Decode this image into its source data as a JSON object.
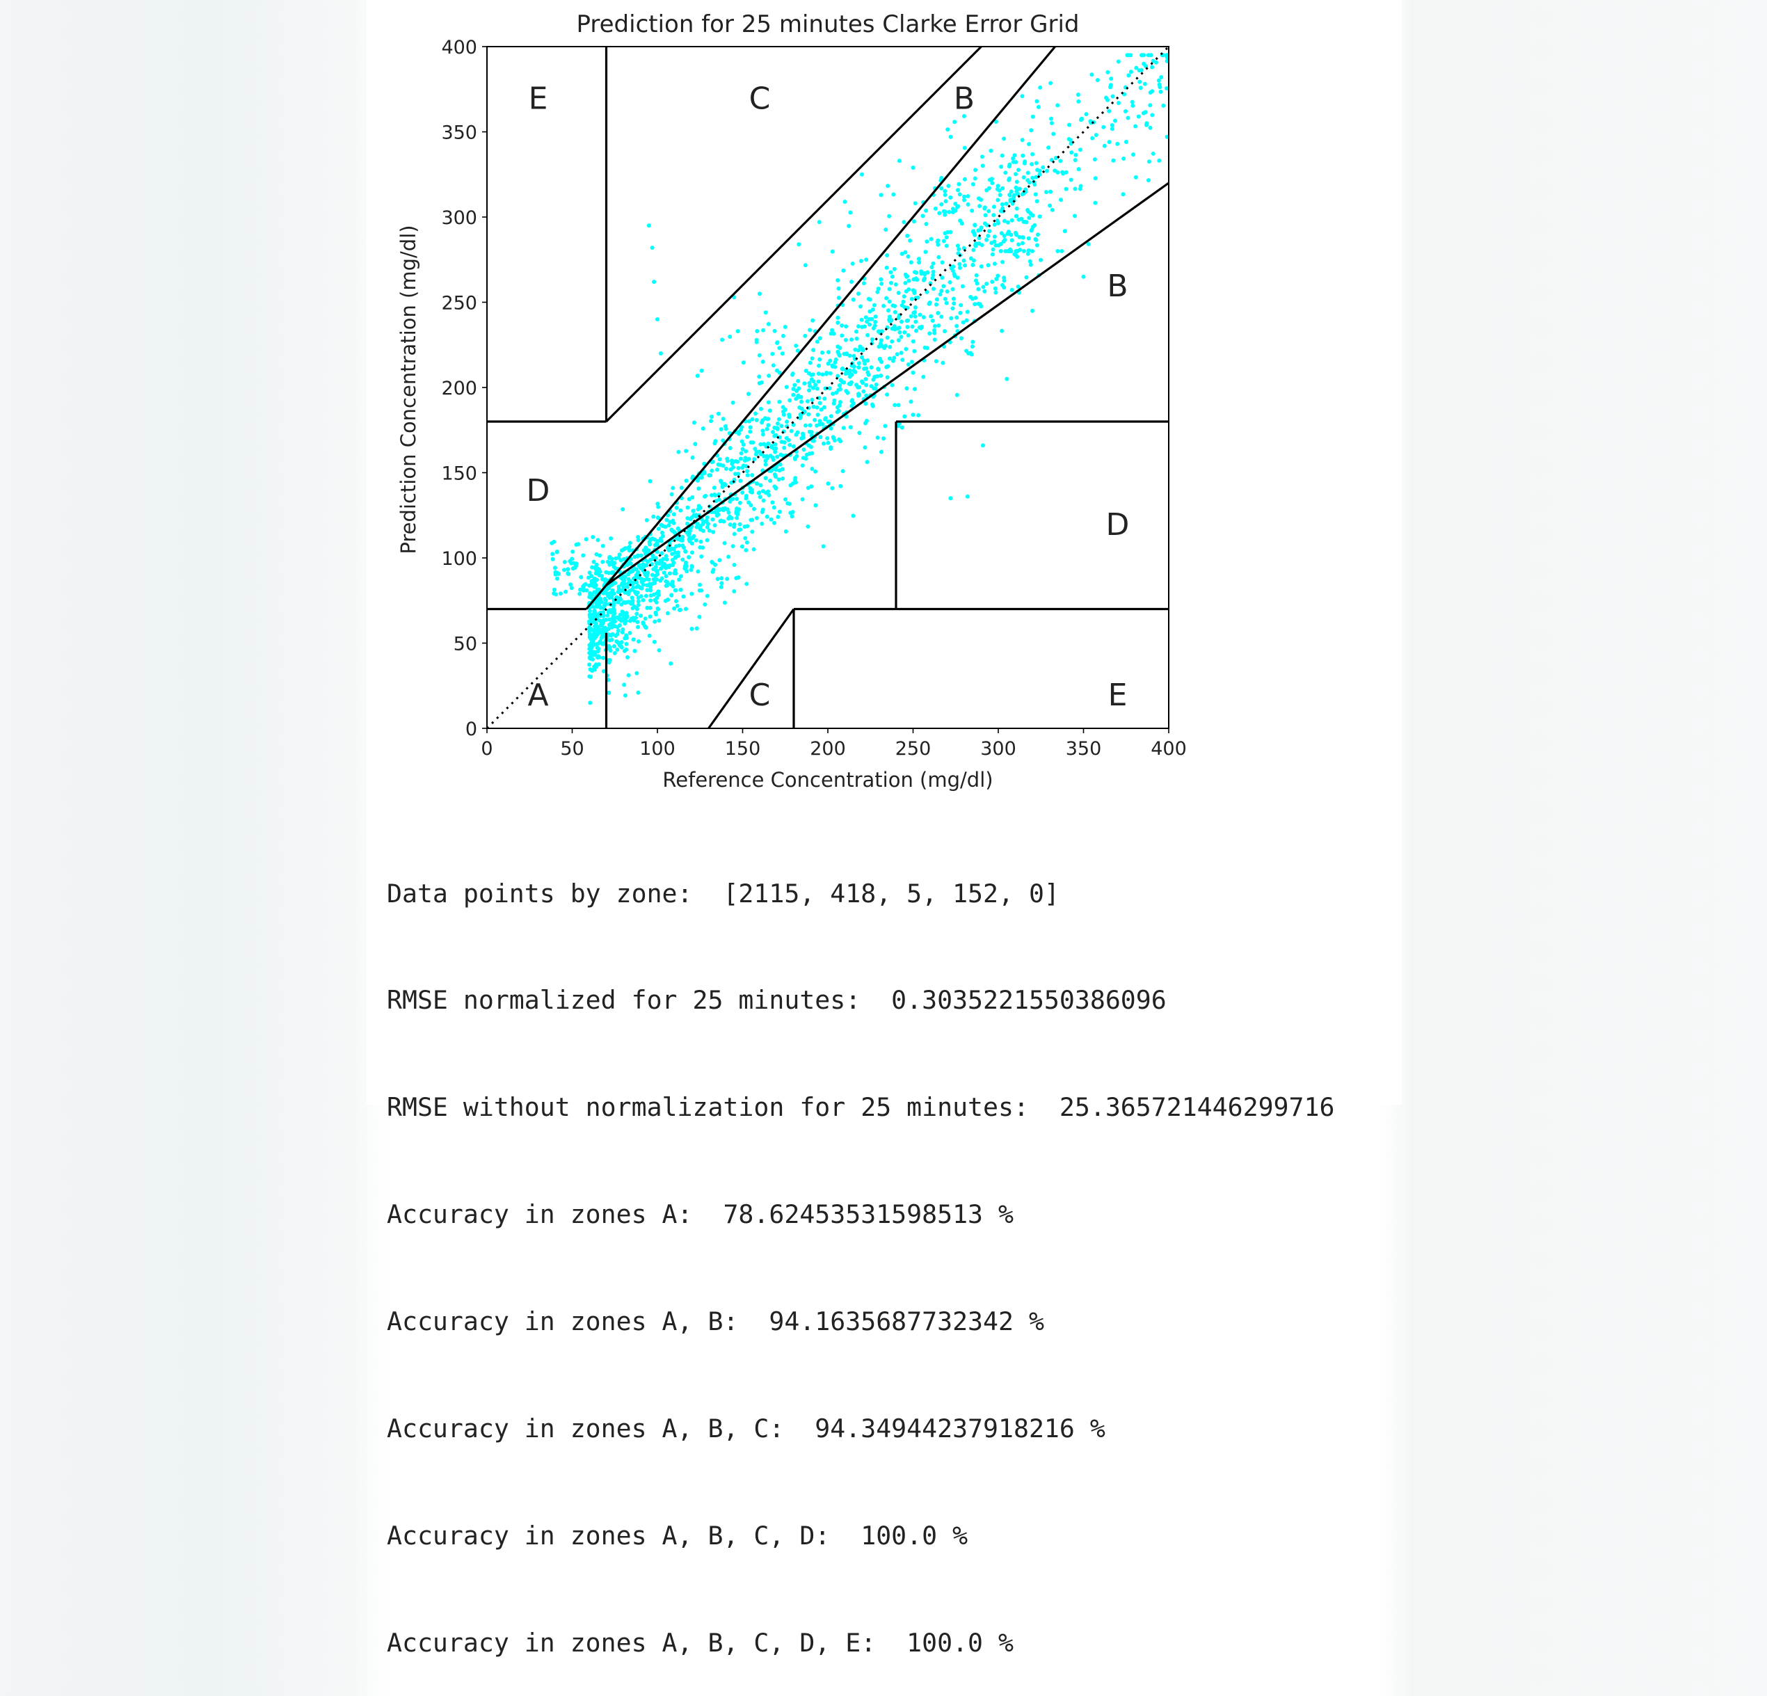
{
  "chart_data": {
    "type": "scatter",
    "title": "Prediction for 25 minutes Clarke Error Grid",
    "xlabel": "Reference Concentration (mg/dl)",
    "ylabel": "Prediction Concentration (mg/dl)",
    "xlim": [
      0,
      400
    ],
    "ylim": [
      0,
      400
    ],
    "xticks": [
      0,
      50,
      100,
      150,
      200,
      250,
      300,
      350,
      400
    ],
    "yticks": [
      0,
      50,
      100,
      150,
      200,
      250,
      300,
      350,
      400
    ],
    "point_color": "#00ffff",
    "zone_lines": [
      [
        [
          0,
          70
        ],
        [
          58.33,
          70
        ]
      ],
      [
        [
          70,
          84
        ],
        [
          400,
          320
        ]
      ],
      [
        [
          70,
          180
        ],
        [
          290,
          400
        ]
      ],
      [
        [
          70,
          0
        ],
        [
          70,
          56
        ]
      ],
      [
        [
          70,
          180
        ],
        [
          70,
          400
        ]
      ],
      [
        [
          0,
          180
        ],
        [
          70,
          180
        ]
      ],
      [
        [
          240,
          70
        ],
        [
          240,
          180
        ]
      ],
      [
        [
          240,
          180
        ],
        [
          400,
          180
        ]
      ],
      [
        [
          130,
          0
        ],
        [
          180,
          70
        ]
      ],
      [
        [
          180,
          70
        ],
        [
          400,
          70
        ]
      ],
      [
        [
          180,
          0
        ],
        [
          180,
          70
        ]
      ],
      [
        [
          58.33,
          70
        ],
        [
          333.33,
          400
        ]
      ]
    ],
    "identity_line": [
      [
        0,
        0
      ],
      [
        400,
        400
      ]
    ],
    "zone_labels": [
      {
        "text": "A",
        "x": 30,
        "y": 20
      },
      {
        "text": "B",
        "x": 370,
        "y": 260
      },
      {
        "text": "B",
        "x": 280,
        "y": 370
      },
      {
        "text": "C",
        "x": 160,
        "y": 370
      },
      {
        "text": "C",
        "x": 160,
        "y": 20
      },
      {
        "text": "D",
        "x": 30,
        "y": 140
      },
      {
        "text": "D",
        "x": 370,
        "y": 120
      },
      {
        "text": "E",
        "x": 30,
        "y": 370
      },
      {
        "text": "E",
        "x": 370,
        "y": 20
      }
    ],
    "point_clusters": {
      "bulk": {
        "count": 1700,
        "x_range": [
          60,
          325
        ],
        "offset_sd": 13
      },
      "low_cluster": {
        "count": 110,
        "x_range": [
          38,
          85
        ],
        "y_range": [
          78,
          115
        ]
      },
      "high_end": {
        "count": 180,
        "x_range": [
          300,
          400
        ],
        "y_range": [
          280,
          395
        ]
      },
      "upper_scatter": {
        "count": 90,
        "x_range": [
          120,
          290
        ],
        "y_offset_range": [
          20,
          90
        ]
      },
      "lower_scatter": {
        "count": 110,
        "x_range": [
          80,
          320
        ],
        "y_offset_range": [
          -70,
          -15
        ]
      }
    },
    "outliers": [
      {
        "x": 95,
        "y": 295
      },
      {
        "x": 97,
        "y": 282
      },
      {
        "x": 98,
        "y": 262
      },
      {
        "x": 100,
        "y": 240
      },
      {
        "x": 102,
        "y": 220
      },
      {
        "x": 138,
        "y": 228
      },
      {
        "x": 145,
        "y": 253
      },
      {
        "x": 160,
        "y": 255
      },
      {
        "x": 183,
        "y": 284
      },
      {
        "x": 195,
        "y": 297
      },
      {
        "x": 210,
        "y": 309
      },
      {
        "x": 220,
        "y": 325
      },
      {
        "x": 242,
        "y": 333
      },
      {
        "x": 250,
        "y": 329
      },
      {
        "x": 262,
        "y": 313
      },
      {
        "x": 272,
        "y": 135
      },
      {
        "x": 282,
        "y": 136
      },
      {
        "x": 291,
        "y": 166
      },
      {
        "x": 305,
        "y": 205
      },
      {
        "x": 245,
        "y": 183
      },
      {
        "x": 250,
        "y": 184
      },
      {
        "x": 320,
        "y": 245
      },
      {
        "x": 350,
        "y": 265
      }
    ],
    "grid": false,
    "legend": "none"
  },
  "output": {
    "lines": [
      "Data points by zone:  [2115, 418, 5, 152, 0]",
      "RMSE normalized for 25 minutes:  0.3035221550386096",
      "RMSE without normalization for 25 minutes:  25.365721446299716",
      "Accuracy in zones A:  78.62453531598513 %",
      "Accuracy in zones A, B:  94.1635687732342 %",
      "Accuracy in zones A, B, C:  94.34944237918216 %",
      "Accuracy in zones A, B, C, D:  100.0 %",
      "Accuracy in zones A, B, C, D, E:  100.0 %"
    ]
  }
}
